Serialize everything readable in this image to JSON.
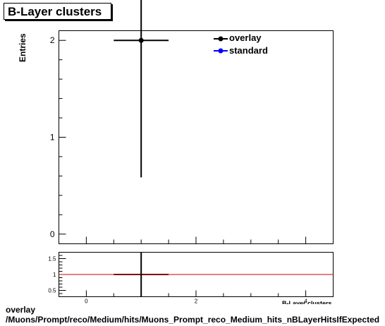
{
  "title": "B-Layer clusters",
  "chart_data": [
    {
      "type": "scatter",
      "ylabel": "Entries",
      "xlim": [
        -0.5,
        4.5
      ],
      "ylim": [
        -0.1,
        2.1
      ],
      "ytick_labels": [
        "0",
        "1",
        "2"
      ],
      "series": [
        {
          "name": "overlay",
          "color": "#000000",
          "points": [
            {
              "x": 1,
              "y": 2,
              "xerr": 0.5,
              "yerr": 1.414
            }
          ]
        },
        {
          "name": "standard",
          "color": "#0000ff",
          "points": []
        }
      ],
      "legend": "top-right"
    },
    {
      "type": "line",
      "xlabel": "B-Layer clusters",
      "xlim": [
        -0.5,
        4.5
      ],
      "ylim": [
        0.3,
        1.7
      ],
      "xtick_labels": [
        "0",
        "2",
        "4"
      ],
      "ytick_labels": [
        "0.5",
        "1",
        "1.5"
      ],
      "reference_line": {
        "y": 1,
        "color": "#cc0000"
      },
      "ratio_point": {
        "x": 1,
        "y": 1,
        "xerr": 0.5,
        "color": "#800000"
      }
    }
  ],
  "footer": {
    "line1": "overlay",
    "line2": "/Muons/Prompt/reco/Medium/hits/Muons_Prompt_reco_Medium_hits_nBLayerHitsIfExpected"
  }
}
